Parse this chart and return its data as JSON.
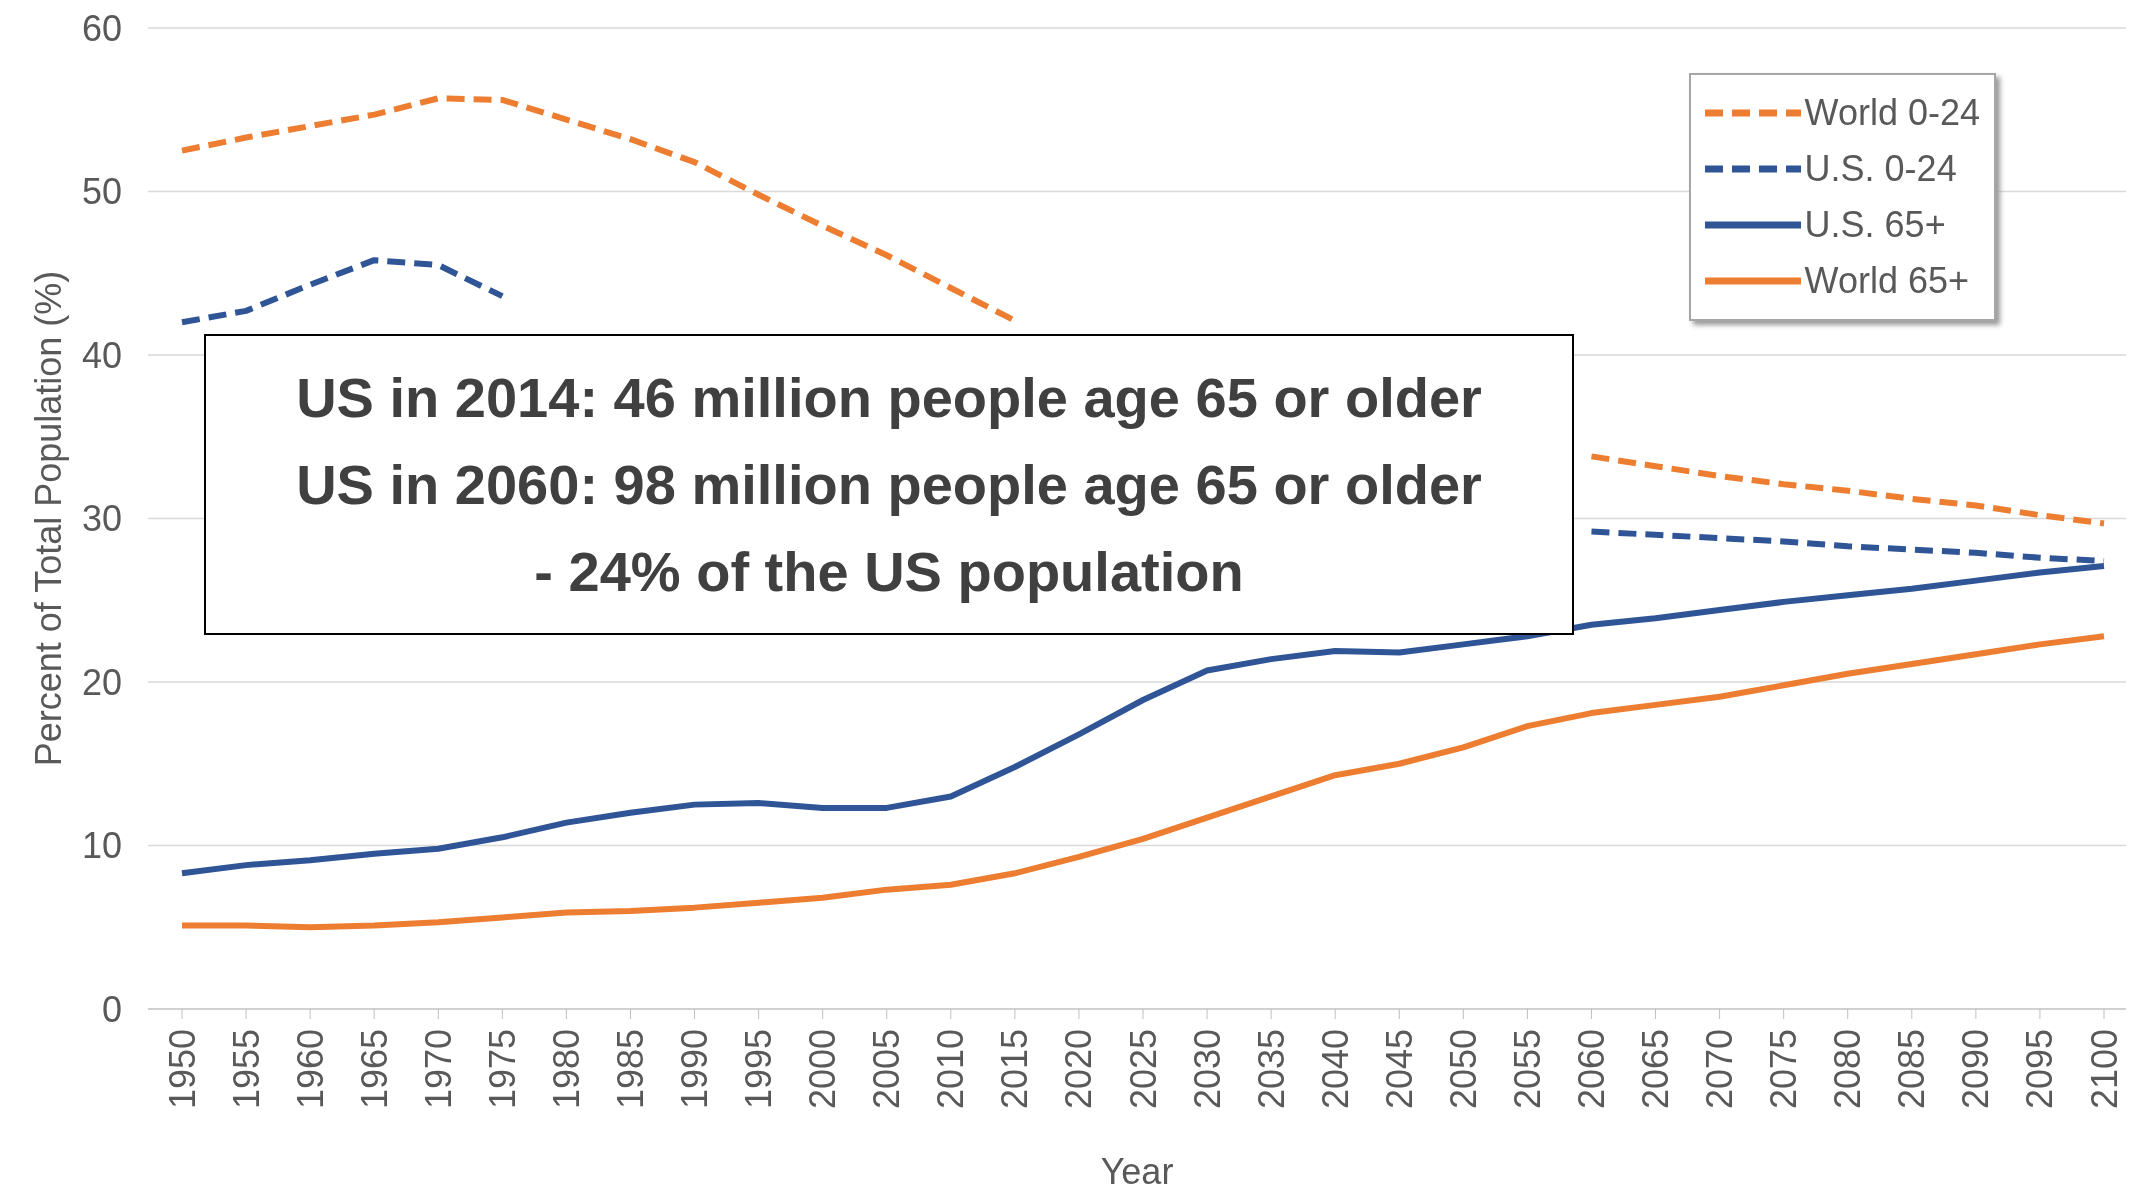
{
  "chart_data": {
    "type": "line",
    "xlabel": "Year",
    "ylabel": "Percent of Total Population (%)",
    "categories": [
      "1950",
      "1955",
      "1960",
      "1965",
      "1970",
      "1975",
      "1980",
      "1985",
      "1990",
      "1995",
      "2000",
      "2005",
      "2010",
      "2015",
      "2020",
      "2025",
      "2030",
      "2035",
      "2040",
      "2045",
      "2050",
      "2055",
      "2060",
      "2065",
      "2070",
      "2075",
      "2080",
      "2085",
      "2090",
      "2095",
      "2100"
    ],
    "series": [
      {
        "name": "World 0-24",
        "color": "#ed7d31",
        "line_style": "dashed",
        "values": [
          52.5,
          53.3,
          54,
          54.7,
          55.7,
          55.6,
          54.4,
          53.2,
          51.8,
          49.8,
          47.9,
          46.1,
          44.1,
          42.1,
          null,
          null,
          null,
          null,
          null,
          null,
          null,
          null,
          33.8,
          33.2,
          32.6,
          32.1,
          31.7,
          31.2,
          30.8,
          30.2,
          29.7
        ]
      },
      {
        "name": "U.S. 0-24",
        "color": "#2f5597",
        "line_style": "dashed",
        "values": [
          42,
          42.7,
          44.3,
          45.8,
          45.5,
          43.6,
          null,
          null,
          null,
          null,
          null,
          null,
          null,
          null,
          null,
          null,
          null,
          null,
          null,
          null,
          null,
          null,
          29.2,
          29,
          28.8,
          28.6,
          28.3,
          28.1,
          27.9,
          27.6,
          27.4
        ]
      },
      {
        "name": "U.S. 65+",
        "color": "#2f5597",
        "line_style": "solid",
        "values": [
          8.3,
          8.8,
          9.1,
          9.5,
          9.8,
          10.5,
          11.4,
          12,
          12.5,
          12.6,
          12.3,
          12.3,
          13,
          14.8,
          16.8,
          18.9,
          20.7,
          21.4,
          21.9,
          21.8,
          22.3,
          22.8,
          23.5,
          23.9,
          24.4,
          24.9,
          25.3,
          25.7,
          26.2,
          26.7,
          27.1
        ]
      },
      {
        "name": "World 65+",
        "color": "#ed7d31",
        "line_style": "solid",
        "values": [
          5.1,
          5.1,
          5,
          5.1,
          5.3,
          5.6,
          5.9,
          6,
          6.2,
          6.5,
          6.8,
          7.3,
          7.6,
          8.3,
          9.3,
          10.4,
          11.7,
          13,
          14.3,
          15,
          16,
          17.3,
          18.1,
          18.6,
          19.1,
          19.8,
          20.5,
          21.1,
          21.7,
          22.3,
          22.8
        ]
      }
    ],
    "ylim": [
      0,
      60
    ],
    "yticks": [
      0,
      10,
      20,
      30,
      40,
      50,
      60
    ],
    "grid": "y",
    "legend": "top right",
    "marker": "none",
    "annotations": [
      "US in 2014: 46 million people age 65 or older",
      "US in 2060: 98 million people age 65 or older",
      "- 24% of the US population"
    ]
  }
}
